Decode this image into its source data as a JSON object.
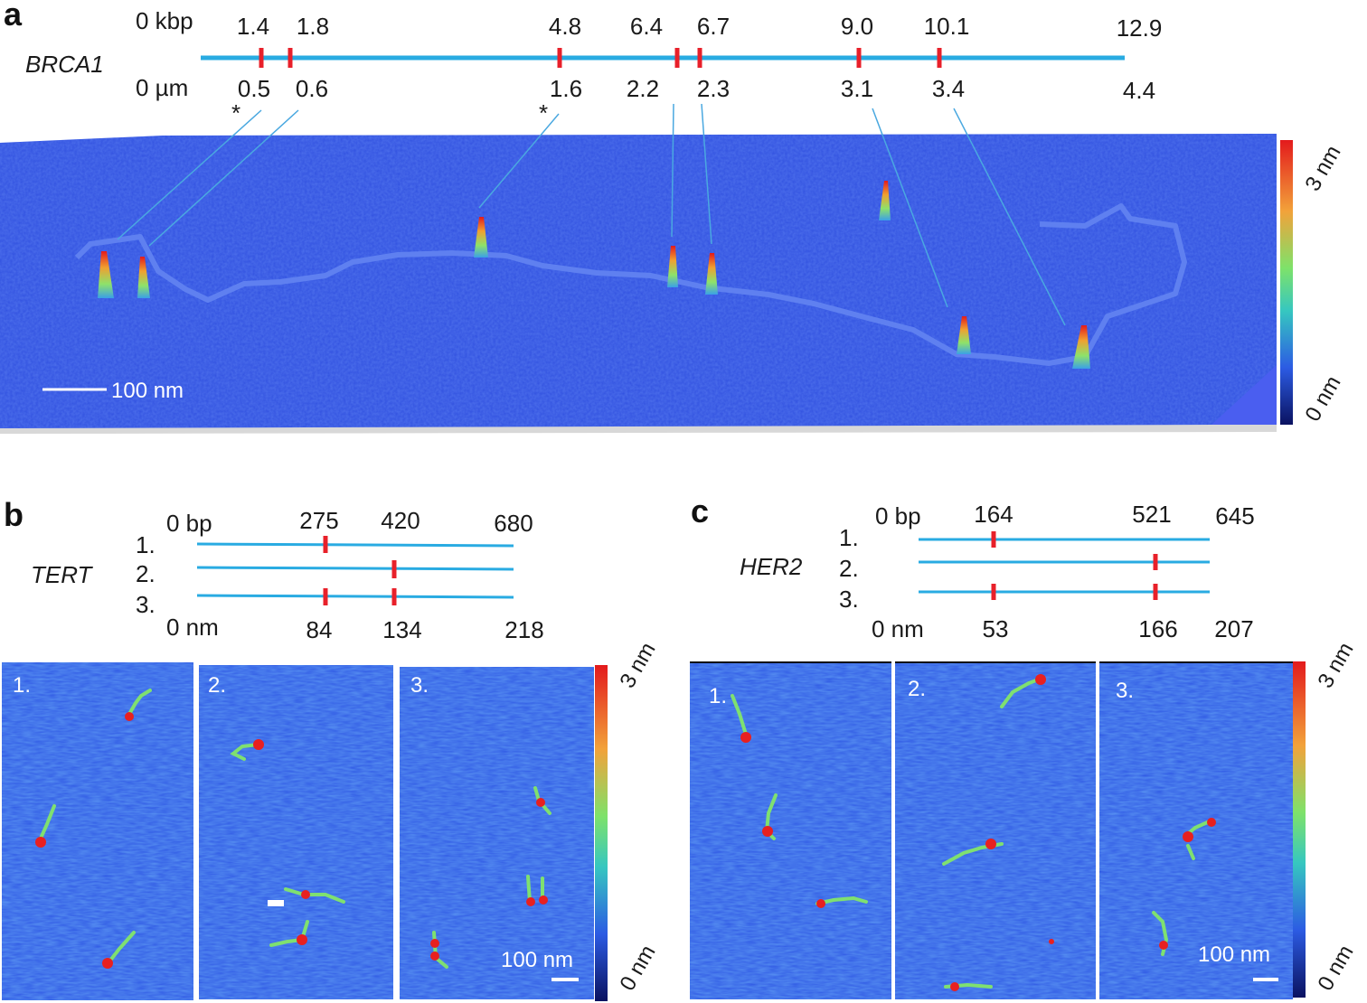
{
  "panels": {
    "a": {
      "label": "a",
      "gene": "BRCA1",
      "kbp_unit": "0 kbp",
      "um_unit": "0 µm",
      "kbp_ticks": [
        "1.4",
        "1.8",
        "4.8",
        "6.4",
        "6.7",
        "9.0",
        "10.1",
        "12.9"
      ],
      "um_ticks": [
        "0.5",
        "0.6",
        "1.6",
        "2.2",
        "2.3",
        "3.1",
        "3.4",
        "4.4"
      ],
      "asterisk": "*",
      "scalebar": "100 nm",
      "colorbar_max": "3 nm",
      "colorbar_min": "0 nm"
    },
    "b": {
      "label": "b",
      "gene": "TERT",
      "bp_start": "0 bp",
      "bp_ticks": [
        "275",
        "420",
        "680"
      ],
      "nm_start": "0 nm",
      "nm_ticks": [
        "84",
        "134",
        "218"
      ],
      "rows": [
        "1.",
        "2.",
        "3."
      ],
      "images": [
        "1.",
        "2.",
        "3."
      ],
      "scalebar": "100 nm",
      "colorbar_max": "3 nm",
      "colorbar_min": "0 nm"
    },
    "c": {
      "label": "c",
      "gene": "HER2",
      "bp_start": "0 bp",
      "bp_ticks": [
        "164",
        "521",
        "645"
      ],
      "nm_start": "0 nm",
      "nm_ticks": [
        "53",
        "166",
        "207"
      ],
      "rows": [
        "1.",
        "2.",
        "3."
      ],
      "images": [
        "1.",
        "2.",
        "3."
      ],
      "scalebar": "100 nm",
      "colorbar_max": "3 nm",
      "colorbar_min": "0 nm"
    }
  },
  "colors": {
    "dna_line": "#29abe2",
    "marker": "#e8202a",
    "surface": "#2f55e0",
    "colorbar_stops": [
      "#e31a1c",
      "#f2a23a",
      "#7ee26a",
      "#36c7c0",
      "#2c5be3",
      "#0a1260"
    ]
  }
}
